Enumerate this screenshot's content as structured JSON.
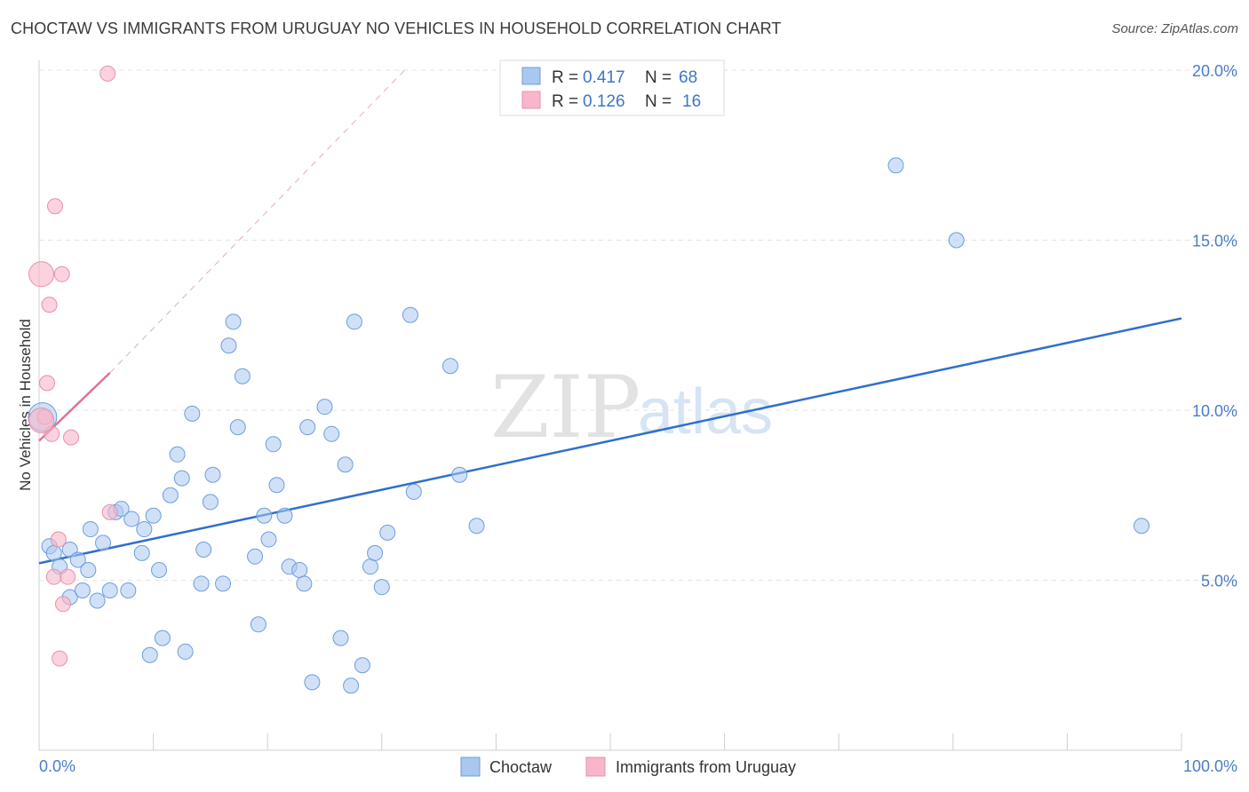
{
  "header": {
    "title": "CHOCTAW VS IMMIGRANTS FROM URUGUAY NO VEHICLES IN HOUSEHOLD CORRELATION CHART",
    "source": "Source: ZipAtlas.com"
  },
  "watermark": {
    "zip": "ZIP",
    "atlas": "atlas"
  },
  "legend": {
    "r_label": "R =",
    "n_label": "N =",
    "rows": [
      {
        "r": "0.417",
        "n": "68",
        "color": "#a9c8f0"
      },
      {
        "r": "0.126",
        "n": "16",
        "color": "#f7b6c9"
      }
    ]
  },
  "colors": {
    "blue_fill": "#a9c8f0",
    "blue_stroke": "#6d9ddd",
    "blue_line": "#2f6fcc",
    "pink_fill": "#f7b6c9",
    "pink_stroke": "#e890ab",
    "pink_line": "#e0709a",
    "grid": "#e3e3e3",
    "axis": "#cfcfcf"
  },
  "chart_data": {
    "type": "scatter",
    "title": "CHOCTAW VS IMMIGRANTS FROM URUGUAY NO VEHICLES IN HOUSEHOLD CORRELATION CHART",
    "xlabel": "",
    "ylabel": "No Vehicles in Household",
    "xlim": [
      0,
      100
    ],
    "ylim": [
      0,
      20
    ],
    "x_tick_labels": [
      "0.0%",
      "100.0%"
    ],
    "y_ticks": [
      5,
      10,
      15,
      20
    ],
    "y_tick_labels": [
      "5.0%",
      "10.0%",
      "15.0%",
      "20.0%"
    ],
    "legend_position": "top-center",
    "series": [
      {
        "name": "Choctaw",
        "color": "#a9c8f0",
        "points": [
          [
            0.9,
            6.0
          ],
          [
            1.3,
            5.8
          ],
          [
            1.8,
            5.4
          ],
          [
            2.7,
            5.9
          ],
          [
            2.7,
            4.5
          ],
          [
            3.4,
            5.6
          ],
          [
            3.8,
            4.7
          ],
          [
            4.3,
            5.3
          ],
          [
            4.5,
            6.5
          ],
          [
            5.1,
            4.4
          ],
          [
            5.6,
            6.1
          ],
          [
            6.2,
            4.7
          ],
          [
            6.7,
            7.0
          ],
          [
            7.2,
            7.1
          ],
          [
            7.8,
            4.7
          ],
          [
            8.1,
            6.8
          ],
          [
            9.0,
            5.8
          ],
          [
            9.2,
            6.5
          ],
          [
            9.7,
            2.8
          ],
          [
            10.0,
            6.9
          ],
          [
            10.5,
            5.3
          ],
          [
            10.8,
            3.3
          ],
          [
            11.5,
            7.5
          ],
          [
            12.1,
            8.7
          ],
          [
            12.5,
            8.0
          ],
          [
            12.8,
            2.9
          ],
          [
            13.4,
            9.9
          ],
          [
            14.2,
            4.9
          ],
          [
            14.4,
            5.9
          ],
          [
            15.0,
            7.3
          ],
          [
            15.2,
            8.1
          ],
          [
            16.1,
            4.9
          ],
          [
            16.6,
            11.9
          ],
          [
            17.0,
            12.6
          ],
          [
            17.4,
            9.5
          ],
          [
            17.8,
            11.0
          ],
          [
            18.9,
            5.7
          ],
          [
            19.2,
            3.7
          ],
          [
            19.7,
            6.9
          ],
          [
            20.1,
            6.2
          ],
          [
            20.5,
            9.0
          ],
          [
            20.8,
            7.8
          ],
          [
            21.5,
            6.9
          ],
          [
            21.9,
            5.4
          ],
          [
            22.8,
            5.3
          ],
          [
            23.2,
            4.9
          ],
          [
            23.5,
            9.5
          ],
          [
            23.9,
            2.0
          ],
          [
            25.0,
            10.1
          ],
          [
            25.6,
            9.3
          ],
          [
            26.4,
            3.3
          ],
          [
            26.8,
            8.4
          ],
          [
            27.3,
            1.9
          ],
          [
            27.6,
            12.6
          ],
          [
            28.3,
            2.5
          ],
          [
            29.0,
            5.4
          ],
          [
            29.4,
            5.8
          ],
          [
            30.0,
            4.8
          ],
          [
            30.5,
            6.4
          ],
          [
            32.5,
            12.8
          ],
          [
            32.8,
            7.6
          ],
          [
            36.0,
            11.3
          ],
          [
            36.8,
            8.1
          ],
          [
            38.3,
            6.6
          ],
          [
            75.0,
            17.2
          ],
          [
            80.3,
            15.0
          ],
          [
            96.5,
            6.6
          ],
          [
            0.3,
            9.8
          ]
        ],
        "trend": {
          "x": [
            0,
            100
          ],
          "y": [
            5.5,
            12.7
          ]
        }
      },
      {
        "name": "Immigrants from Uruguay",
        "color": "#f7b6c9",
        "points": [
          [
            0.2,
            14.0
          ],
          [
            0.5,
            9.8
          ],
          [
            0.7,
            10.8
          ],
          [
            0.9,
            13.1
          ],
          [
            1.1,
            9.3
          ],
          [
            1.3,
            5.1
          ],
          [
            1.4,
            16.0
          ],
          [
            1.7,
            6.2
          ],
          [
            1.8,
            2.7
          ],
          [
            2.0,
            14.0
          ],
          [
            2.1,
            4.3
          ],
          [
            2.5,
            5.1
          ],
          [
            2.8,
            9.2
          ],
          [
            6.2,
            7.0
          ],
          [
            6.0,
            19.9
          ],
          [
            0.2,
            9.7
          ]
        ],
        "trend": {
          "x": [
            0,
            6.2
          ],
          "y": [
            9.1,
            11.1
          ]
        },
        "trend_extension": {
          "x": [
            6.2,
            32.0
          ],
          "y": [
            11.1,
            20.0
          ]
        }
      }
    ]
  },
  "bottom_legend": {
    "items": [
      {
        "label": "Choctaw",
        "color": "#a9c8f0"
      },
      {
        "label": "Immigrants from Uruguay",
        "color": "#f7b6c9"
      }
    ]
  }
}
